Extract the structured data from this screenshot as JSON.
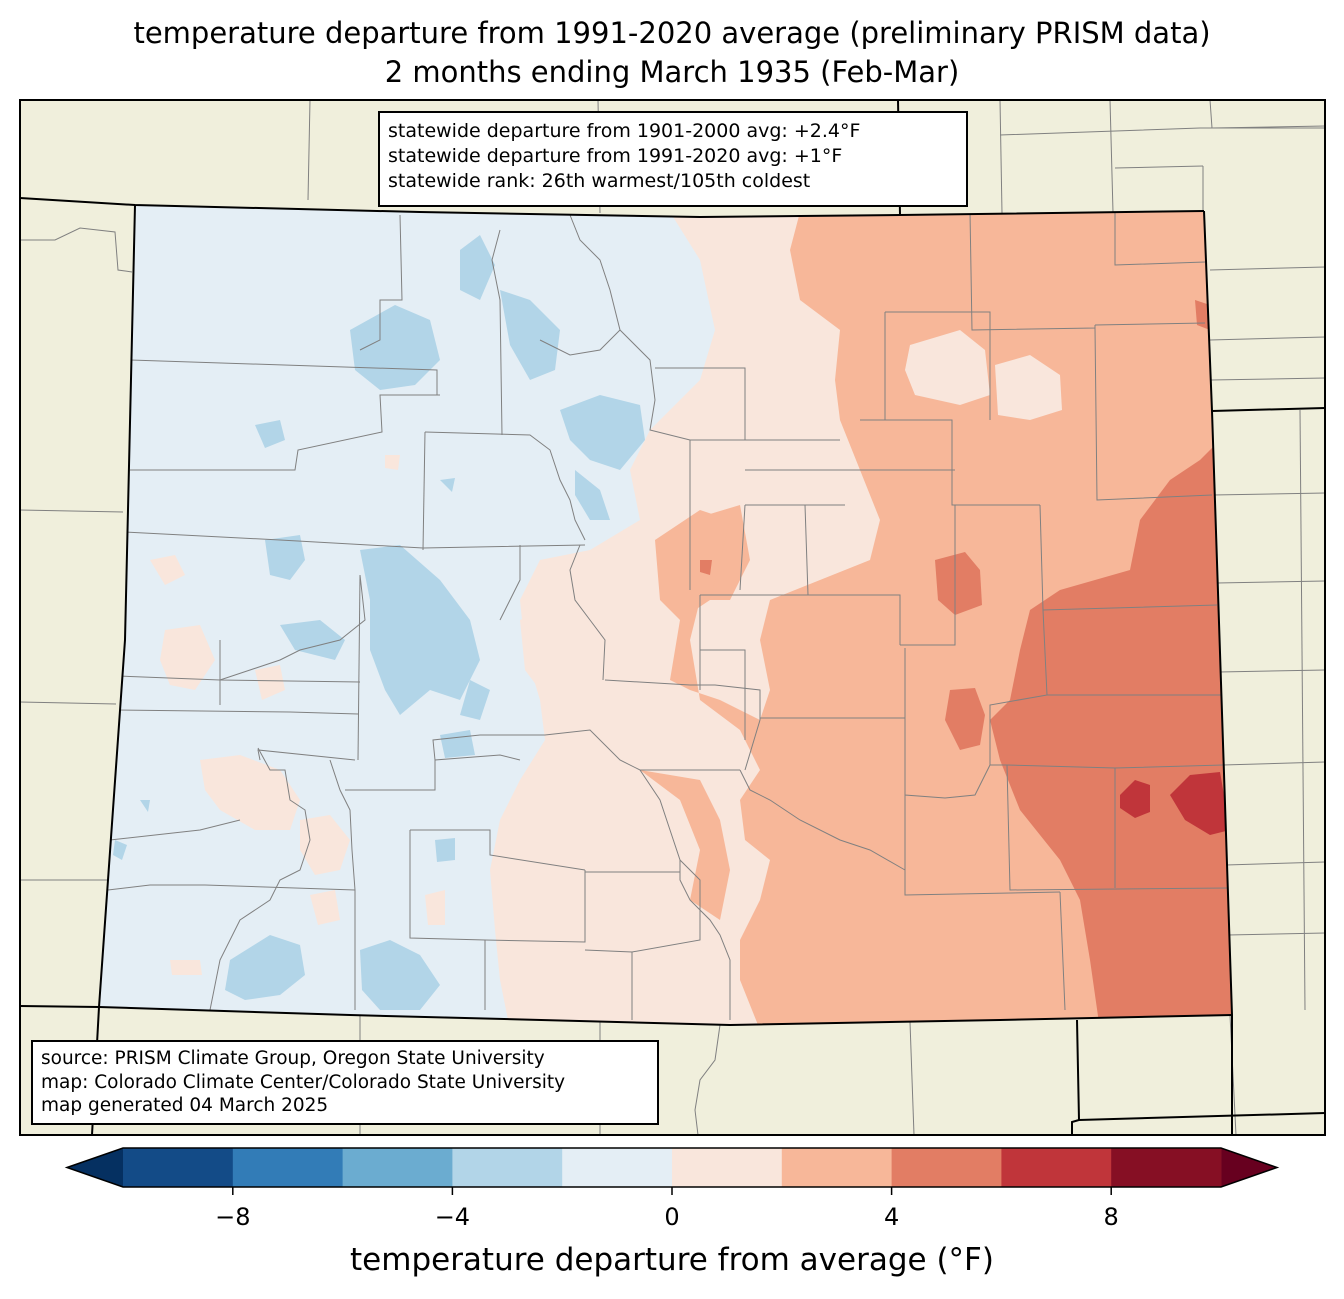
{
  "title_line1": "temperature departure from 1991-2020 average (preliminary PRISM data)",
  "title_line2": "2 months ending March 1935 (Feb-Mar)",
  "stats": {
    "line1": "statewide departure from 1901-2000 avg: +2.4°F",
    "line2": "statewide departure from 1991-2020 avg: +1°F",
    "line3": "statewide rank: 26th warmest/105th coldest"
  },
  "source": {
    "line1": "source: PRISM Climate Group, Oregon State University",
    "line2": "map: Colorado Climate Center/Colorado State University",
    "line3": "map generated 04 March 2025"
  },
  "colorbar": {
    "label": "temperature departure from average (°F)",
    "ticks": [
      {
        "value": -8,
        "label": "−8"
      },
      {
        "value": -4,
        "label": "−4"
      },
      {
        "value": 0,
        "label": "0"
      },
      {
        "value": 4,
        "label": "4"
      },
      {
        "value": 8,
        "label": "8"
      }
    ],
    "range": [
      -10,
      10
    ],
    "bins": [
      {
        "from": -10,
        "to": -8,
        "color": "#134b87"
      },
      {
        "from": -8,
        "to": -6,
        "color": "#327cb7"
      },
      {
        "from": -6,
        "to": -4,
        "color": "#6bacd0"
      },
      {
        "from": -4,
        "to": -2,
        "color": "#b2d5e8"
      },
      {
        "from": -2,
        "to": 0,
        "color": "#e4eef5"
      },
      {
        "from": 0,
        "to": 2,
        "color": "#f9e6dc"
      },
      {
        "from": 2,
        "to": 4,
        "color": "#f7b799"
      },
      {
        "from": 4,
        "to": 6,
        "color": "#e27d64"
      },
      {
        "from": 6,
        "to": 8,
        "color": "#c0353a"
      },
      {
        "from": 8,
        "to": 10,
        "color": "#860f24"
      }
    ],
    "under_color": "#053061",
    "over_color": "#67001f"
  },
  "colors": {
    "land": "#f0efdc",
    "state_border": "#000000",
    "county_border": "#808080"
  }
}
